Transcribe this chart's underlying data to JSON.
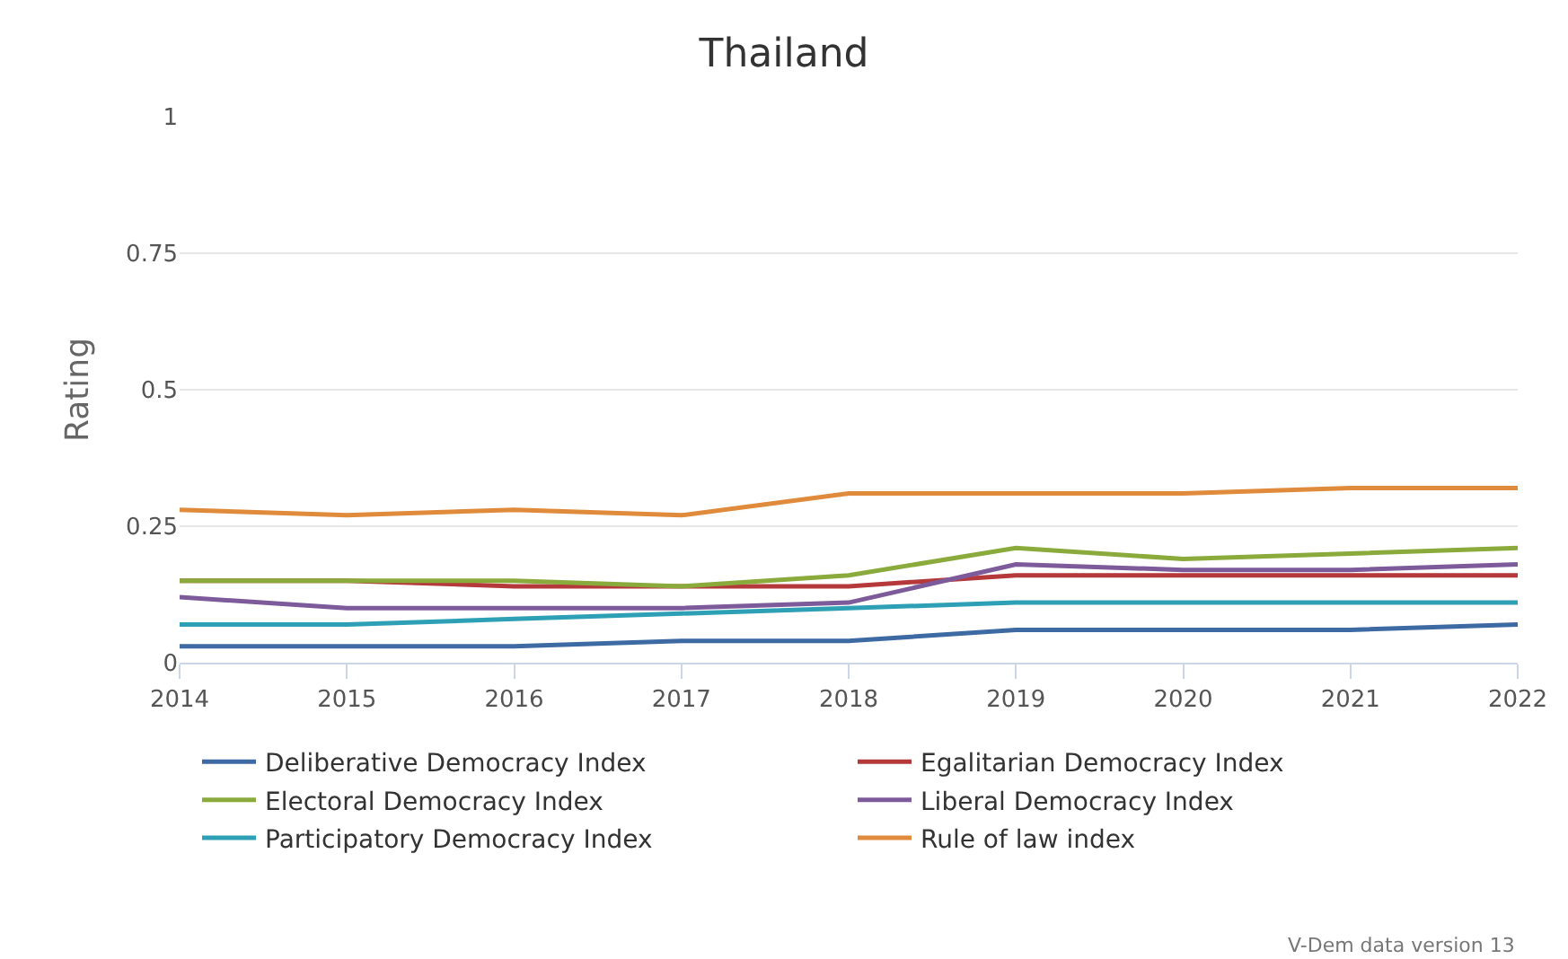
{
  "chart_data": {
    "type": "line",
    "title": "Thailand",
    "ylabel": "Rating",
    "x": [
      2014,
      2015,
      2016,
      2017,
      2018,
      2019,
      2020,
      2021,
      2022
    ],
    "xlim": [
      2014,
      2022
    ],
    "xticks": [
      2014,
      2015,
      2016,
      2017,
      2018,
      2019,
      2020,
      2021,
      2022
    ],
    "ylim": [
      0,
      1
    ],
    "yticks": [
      0,
      0.25,
      0.5,
      0.75,
      1
    ],
    "grid": "y",
    "legend": "bottom",
    "marker": "none",
    "line_style": "solid",
    "series": [
      {
        "name": "Deliberative Democracy Index",
        "color": "#3d6aa2",
        "values": [
          0.03,
          0.03,
          0.03,
          0.04,
          0.04,
          0.06,
          0.06,
          0.06,
          0.07
        ]
      },
      {
        "name": "Egalitarian Democracy Index",
        "color": "#b5383a",
        "values": [
          0.15,
          0.15,
          0.14,
          0.14,
          0.14,
          0.16,
          0.16,
          0.16,
          0.16
        ]
      },
      {
        "name": "Electoral Democracy Index",
        "color": "#8aab3c",
        "values": [
          0.15,
          0.15,
          0.15,
          0.14,
          0.16,
          0.21,
          0.19,
          0.2,
          0.21
        ]
      },
      {
        "name": "Liberal Democracy Index",
        "color": "#7d5a9a",
        "values": [
          0.12,
          0.1,
          0.1,
          0.1,
          0.11,
          0.18,
          0.17,
          0.17,
          0.18
        ]
      },
      {
        "name": "Participatory Democracy Index",
        "color": "#2ea0b5",
        "values": [
          0.07,
          0.07,
          0.08,
          0.09,
          0.1,
          0.11,
          0.11,
          0.11,
          0.11
        ]
      },
      {
        "name": "Rule of law index",
        "color": "#e08a3c",
        "values": [
          0.28,
          0.27,
          0.28,
          0.27,
          0.31,
          0.31,
          0.31,
          0.32,
          0.32
        ]
      }
    ],
    "annotations": [
      "V-Dem data version 13"
    ]
  }
}
